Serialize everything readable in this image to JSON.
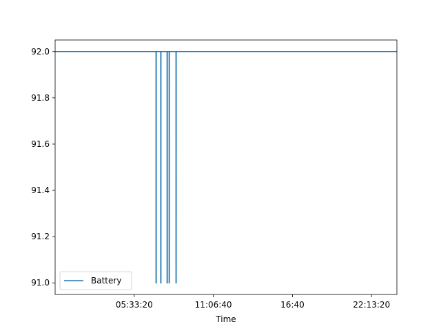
{
  "chart_data": {
    "type": "line",
    "title": "",
    "xlabel": "Time",
    "ylabel": "",
    "x_unit": "seconds_of_day",
    "xlim": [
      0,
      86400
    ],
    "ylim": [
      90.95,
      92.05
    ],
    "x_ticks": [
      {
        "value": 20000,
        "label": "05:33:20"
      },
      {
        "value": 40000,
        "label": "11:06:40"
      },
      {
        "value": 60000,
        "label": "16:40"
      },
      {
        "value": 80000,
        "label": "22:13:20"
      }
    ],
    "y_ticks": [
      {
        "value": 91.0,
        "label": "91.0"
      },
      {
        "value": 91.2,
        "label": "91.2"
      },
      {
        "value": 91.4,
        "label": "91.4"
      },
      {
        "value": 91.6,
        "label": "91.6"
      },
      {
        "value": 91.8,
        "label": "91.8"
      },
      {
        "value": 92.0,
        "label": "92.0"
      }
    ],
    "grid": false,
    "legend": {
      "position": "lower-left",
      "entries": [
        "Battery"
      ]
    },
    "series": [
      {
        "name": "Battery",
        "color": "#1f77b4",
        "x": [
          0,
          25500,
          25501,
          25560,
          25561,
          26700,
          26701,
          26760,
          26761,
          28300,
          28301,
          28360,
          28361,
          28820,
          28821,
          28880,
          28881,
          30550,
          30551,
          30610,
          30611,
          86400
        ],
        "y": [
          92.0,
          92.0,
          91.0,
          91.0,
          92.0,
          92.0,
          91.0,
          91.0,
          92.0,
          92.0,
          91.0,
          91.0,
          92.0,
          92.0,
          91.0,
          91.0,
          92.0,
          92.0,
          91.0,
          91.0,
          92.0,
          92.0
        ]
      }
    ]
  }
}
